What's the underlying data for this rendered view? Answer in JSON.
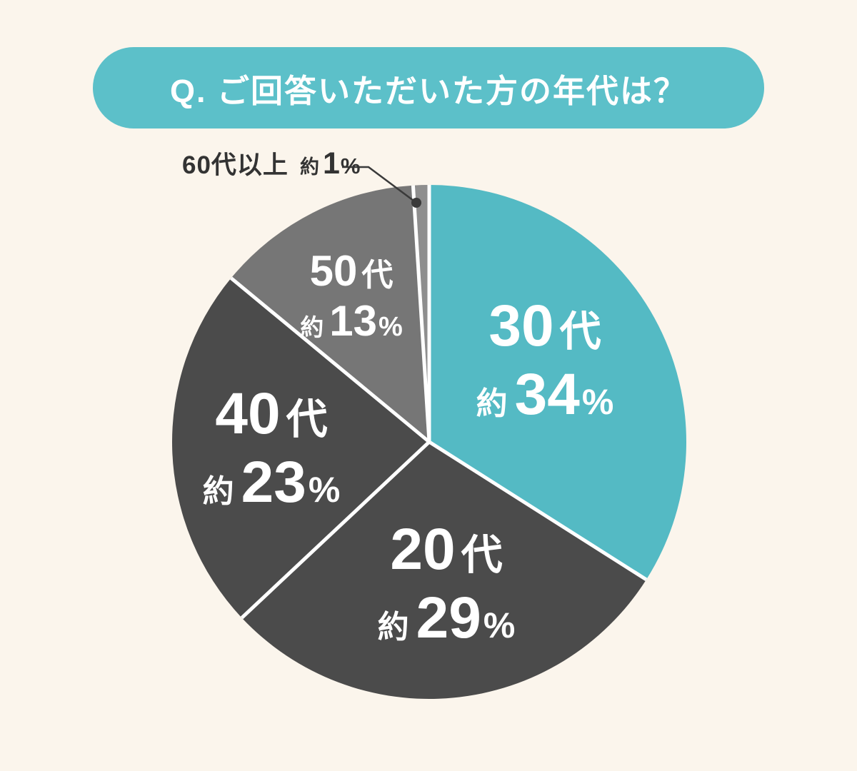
{
  "header": {
    "question": "Q. ご回答いただいた方の年代は？"
  },
  "colors": {
    "background": "#FBF5EC",
    "header_bg": "#5CC0C9",
    "header_text": "#FFFFFF",
    "slice_text": "#FFFFFF",
    "callout_text": "#333333",
    "separator": "#FFFFFF",
    "leader_line": "#3A3A3A"
  },
  "chart_data": {
    "type": "pie",
    "title": "Q. ご回答いただいた方の年代は？",
    "unit": "%",
    "direction": "clockwise",
    "start_angle_deg": 0,
    "legend_position": "none",
    "background": "#FBF5EC",
    "separator_color": "#FFFFFF",
    "categories": [
      "30代",
      "20代",
      "40代",
      "50代",
      "60代以上"
    ],
    "values": [
      34,
      29,
      23,
      13,
      1
    ],
    "series": [
      {
        "key": "30s",
        "label": "30代",
        "value": 34,
        "color": "#54BAC4",
        "display": {
          "num": "30",
          "suffix": "代",
          "approx": "約",
          "value": "34",
          "unit": "%"
        }
      },
      {
        "key": "20s",
        "label": "20代",
        "value": 29,
        "color": "#4B4B4B",
        "display": {
          "num": "20",
          "suffix": "代",
          "approx": "約",
          "value": "29",
          "unit": "%"
        }
      },
      {
        "key": "40s",
        "label": "40代",
        "value": 23,
        "color": "#4B4B4B",
        "display": {
          "num": "40",
          "suffix": "代",
          "approx": "約",
          "value": "23",
          "unit": "%"
        }
      },
      {
        "key": "50s",
        "label": "50代",
        "value": 13,
        "color": "#767676",
        "display": {
          "num": "50",
          "suffix": "代",
          "approx": "約",
          "value": "13",
          "unit": "%"
        }
      },
      {
        "key": "60s-plus",
        "label": "60代以上",
        "value": 1,
        "color": "#8E8E8E",
        "callout": true,
        "display": {
          "approx": "約",
          "value": "1",
          "unit": "%"
        }
      }
    ]
  }
}
